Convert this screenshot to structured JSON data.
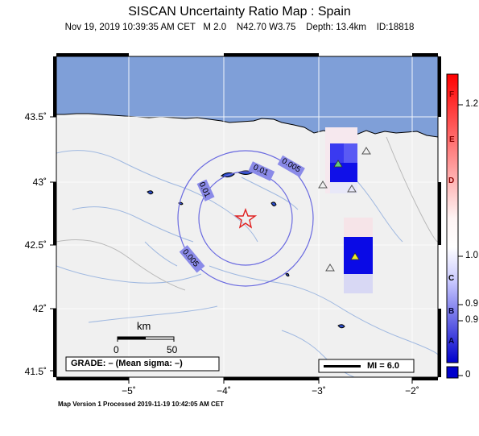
{
  "header": {
    "title": "SISCAN Uncertainty Ratio Map : Spain",
    "subtitle": "Nov 19, 2019 10:39:35 AM CET   M 2.0    N42.70 W3.75    Depth: 13.4km    ID:18818"
  },
  "footer": {
    "processed": "Map Version 1 Processed 2019-11-19 10:42:05 AM CET"
  },
  "map": {
    "lat_labels": [
      "43.5˚",
      "43˚",
      "42.5˚",
      "42˚",
      "41.5˚"
    ],
    "lon_labels": [
      "−5˚",
      "−4˚",
      "−3˚",
      "−2˚"
    ],
    "contour_labels": [
      "0.01",
      "0.005",
      "0.01",
      "0.005"
    ],
    "scale": {
      "title": "km",
      "min": "0",
      "max": "50"
    },
    "grade_box": "GRADE: – (Mean sigma: –)",
    "mi_legend": "MI = 6.0",
    "colors": {
      "sea": "#7f9fd8",
      "land": "#f0f0f0",
      "contour": "#6a6ae0",
      "epicenter": "#e02020"
    },
    "icons": [
      "epicenter-star-icon",
      "station-triangle-icon"
    ]
  },
  "colorbar": {
    "letters": [
      "F",
      "E",
      "D",
      "C",
      "B",
      "A"
    ],
    "values": [
      "1.2",
      "1.0",
      "0.9",
      "0.9",
      "0"
    ],
    "colors": {
      "top": "#ff0000",
      "middle": "#ffffff",
      "bottom": "#0000cc"
    }
  }
}
